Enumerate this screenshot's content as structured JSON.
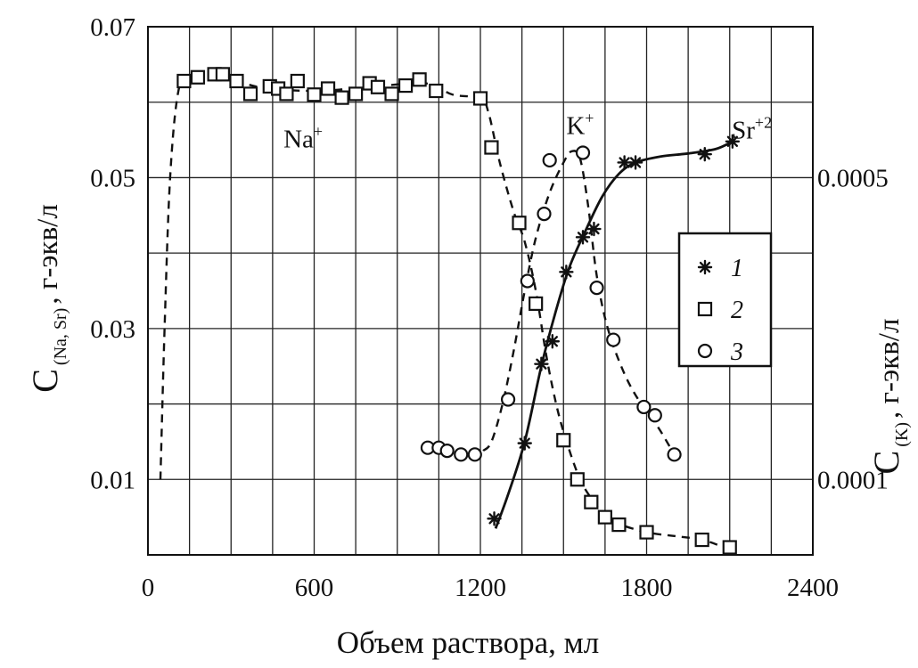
{
  "chart_data": {
    "type": "scatter",
    "title": "",
    "xlabel": "Объем раствора, мл",
    "ylabel_left": {
      "main": "C",
      "sub": "(Na, Sr)",
      "rest": ", г-экв/л"
    },
    "ylabel_right": {
      "main": "C",
      "sub": "(K)",
      "rest": ", г-экв/л"
    },
    "xlim": [
      0,
      2400
    ],
    "ylim_left": [
      0,
      0.07
    ],
    "ylim_right": [
      0,
      0.0007
    ],
    "x_ticks": [
      {
        "value": 0,
        "label": "0"
      },
      {
        "value": 600,
        "label": "600"
      },
      {
        "value": 1200,
        "label": "1200"
      },
      {
        "value": 1800,
        "label": "1800"
      },
      {
        "value": 2400,
        "label": "2400"
      }
    ],
    "y_ticks_left": [
      {
        "value": 0.01,
        "label": "0.01"
      },
      {
        "value": 0.03,
        "label": "0.03"
      },
      {
        "value": 0.05,
        "label": "0.05"
      },
      {
        "value": 0.07,
        "label": "0.07"
      }
    ],
    "y_ticks_right": [
      {
        "value": 0.0001,
        "label": "0.0001"
      },
      {
        "value": 0.0005,
        "label": "0.0005"
      }
    ],
    "grid": true,
    "legend_position": "right",
    "annotations": [
      {
        "text": "Na",
        "sup": "+",
        "x": 560,
        "y": 0.054
      },
      {
        "text": "K",
        "sup": "+",
        "x": 1560,
        "y": 0.0558
      },
      {
        "text": "Sr",
        "sup": "+2",
        "x": 2180,
        "y": 0.0552
      }
    ],
    "series": [
      {
        "name": "1",
        "marker": "asterisk",
        "axis": "left",
        "line": "solid",
        "points": [
          [
            1250,
            0.0048
          ],
          [
            1360,
            0.0148
          ],
          [
            1420,
            0.0253
          ],
          [
            1460,
            0.0283
          ],
          [
            1510,
            0.0375
          ],
          [
            1570,
            0.0421
          ],
          [
            1610,
            0.0432
          ],
          [
            1720,
            0.052
          ],
          [
            1760,
            0.052
          ],
          [
            2010,
            0.0531
          ],
          [
            2110,
            0.0548
          ]
        ],
        "curve": [
          [
            1255,
            0.0035
          ],
          [
            1300,
            0.008
          ],
          [
            1360,
            0.015
          ],
          [
            1420,
            0.025
          ],
          [
            1470,
            0.032
          ],
          [
            1520,
            0.038
          ],
          [
            1580,
            0.043
          ],
          [
            1640,
            0.0475
          ],
          [
            1700,
            0.0505
          ],
          [
            1760,
            0.052
          ],
          [
            1850,
            0.0528
          ],
          [
            1950,
            0.0532
          ],
          [
            2050,
            0.0538
          ],
          [
            2110,
            0.0548
          ]
        ]
      },
      {
        "name": "2",
        "marker": "square",
        "axis": "left",
        "line": "dashed",
        "points": [
          [
            130,
            0.0628
          ],
          [
            180,
            0.0633
          ],
          [
            240,
            0.0637
          ],
          [
            270,
            0.0637
          ],
          [
            320,
            0.0628
          ],
          [
            370,
            0.0611
          ],
          [
            440,
            0.0621
          ],
          [
            470,
            0.0618
          ],
          [
            500,
            0.0611
          ],
          [
            540,
            0.0628
          ],
          [
            600,
            0.061
          ],
          [
            650,
            0.0618
          ],
          [
            700,
            0.0606
          ],
          [
            750,
            0.0611
          ],
          [
            800,
            0.0625
          ],
          [
            830,
            0.062
          ],
          [
            880,
            0.0611
          ],
          [
            930,
            0.0622
          ],
          [
            980,
            0.063
          ],
          [
            1040,
            0.0615
          ],
          [
            1200,
            0.0605
          ],
          [
            1240,
            0.054
          ],
          [
            1340,
            0.044
          ],
          [
            1400,
            0.0333
          ],
          [
            1500,
            0.0152
          ],
          [
            1550,
            0.01
          ],
          [
            1600,
            0.007
          ],
          [
            1650,
            0.005
          ],
          [
            1700,
            0.004
          ],
          [
            1800,
            0.003
          ],
          [
            2000,
            0.002
          ],
          [
            2100,
            0.001
          ]
        ],
        "curve": [
          [
            45,
            0.01
          ],
          [
            60,
            0.03
          ],
          [
            80,
            0.05
          ],
          [
            110,
            0.0615
          ],
          [
            150,
            0.063
          ],
          [
            250,
            0.0637
          ],
          [
            400,
            0.062
          ],
          [
            600,
            0.0615
          ],
          [
            800,
            0.062
          ],
          [
            1000,
            0.0625
          ],
          [
            1100,
            0.061
          ],
          [
            1200,
            0.0605
          ],
          [
            1230,
            0.0585
          ],
          [
            1270,
            0.052
          ],
          [
            1320,
            0.0455
          ],
          [
            1360,
            0.0415
          ],
          [
            1400,
            0.035
          ],
          [
            1440,
            0.026
          ],
          [
            1480,
            0.019
          ],
          [
            1520,
            0.014
          ],
          [
            1560,
            0.01
          ],
          [
            1600,
            0.0075
          ],
          [
            1650,
            0.0052
          ],
          [
            1700,
            0.0041
          ],
          [
            1800,
            0.003
          ],
          [
            1900,
            0.0025
          ],
          [
            2000,
            0.002
          ],
          [
            2080,
            0.001
          ]
        ]
      },
      {
        "name": "3",
        "marker": "circle",
        "axis": "right",
        "line": "dashed",
        "points": [
          [
            1010,
            0.000142
          ],
          [
            1050,
            0.000142
          ],
          [
            1080,
            0.000138
          ],
          [
            1130,
            0.000133
          ],
          [
            1180,
            0.000133
          ],
          [
            1300,
            0.000206
          ],
          [
            1370,
            0.000363
          ],
          [
            1430,
            0.000452
          ],
          [
            1450,
            0.000523
          ],
          [
            1570,
            0.000533
          ],
          [
            1620,
            0.000354
          ],
          [
            1680,
            0.000285
          ],
          [
            1790,
            0.000196
          ],
          [
            1830,
            0.000185
          ],
          [
            1900,
            0.000133
          ]
        ],
        "curve": [
          [
            1210,
            0.000138
          ],
          [
            1240,
            0.00015
          ],
          [
            1280,
            0.0002
          ],
          [
            1320,
            0.00027
          ],
          [
            1360,
            0.00035
          ],
          [
            1400,
            0.00042
          ],
          [
            1450,
            0.00048
          ],
          [
            1500,
            0.00052
          ],
          [
            1530,
            0.000535
          ],
          [
            1560,
            0.000525
          ],
          [
            1590,
            0.00046
          ],
          [
            1620,
            0.00037
          ],
          [
            1660,
            0.0003
          ],
          [
            1720,
            0.00024
          ],
          [
            1780,
            0.0002
          ],
          [
            1840,
            0.00017
          ],
          [
            1900,
            0.000133
          ]
        ]
      }
    ],
    "legend": [
      {
        "marker": "asterisk",
        "label": "1"
      },
      {
        "marker": "square",
        "label": "2"
      },
      {
        "marker": "circle",
        "label": "3"
      }
    ]
  }
}
